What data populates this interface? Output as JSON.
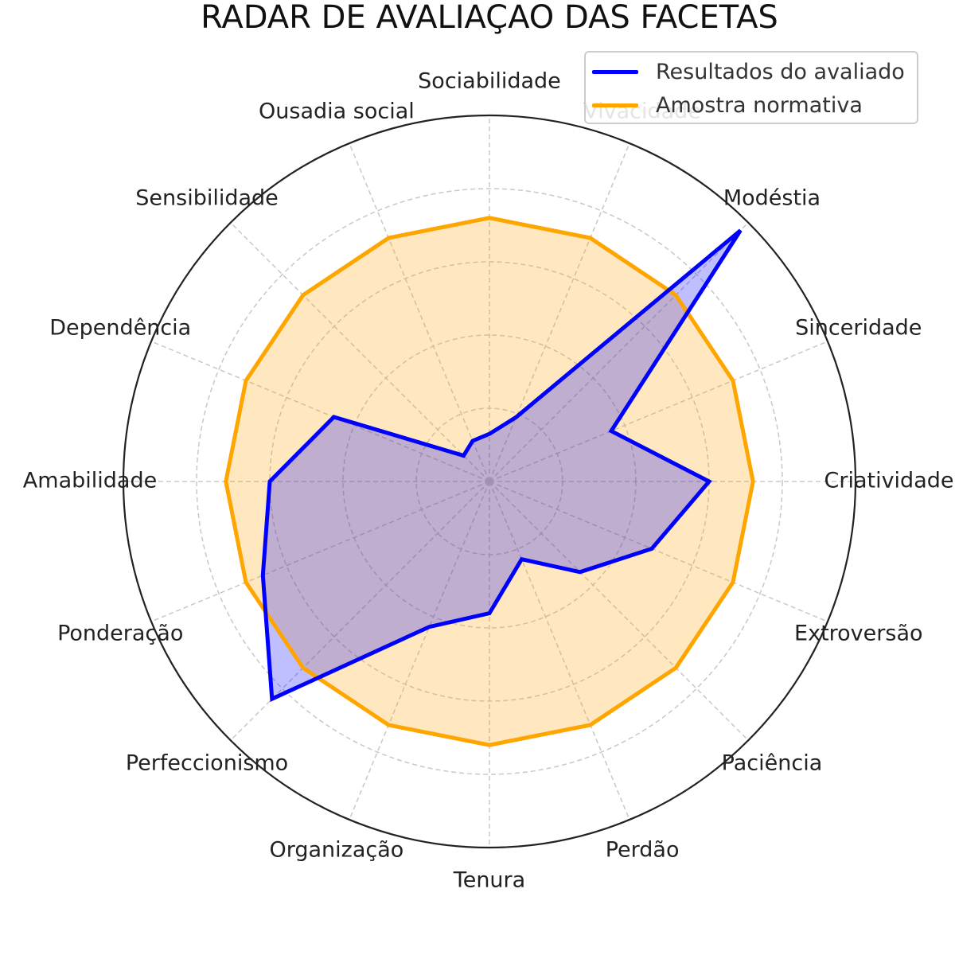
{
  "chart_data": {
    "type": "radar",
    "title": "RADAR DE AVALIAÇAO DAS FACETAS",
    "categories": [
      "Criatividade",
      "Sinceridade",
      "Modéstia",
      "Vivacidade",
      "Sociabilidade",
      "Ousadia social",
      "Sensibilidade",
      "Dependência",
      "Amabilidade",
      "Ponderação",
      "Perfeccionismo",
      "Organização",
      "Tenura",
      "Perdão",
      "Paciência",
      "Extroversão"
    ],
    "rlim": [
      0,
      10
    ],
    "grid_rings": [
      2,
      4,
      6,
      8,
      10
    ],
    "grid": true,
    "legend_position": "top-right",
    "series": [
      {
        "name": "Resultados do avaliado",
        "color": "#0000ff",
        "fill": "rgba(0,0,255,0.25)",
        "values": [
          6.0,
          3.6,
          9.7,
          1.9,
          1.3,
          1.2,
          1.0,
          4.6,
          6.0,
          6.7,
          8.4,
          4.3,
          3.6,
          2.3,
          3.5,
          4.8
        ]
      },
      {
        "name": "Amostra normativa",
        "color": "#ffa500",
        "fill": "rgba(255,165,0,0.25)",
        "values": [
          7.2,
          7.2,
          7.2,
          7.2,
          7.2,
          7.2,
          7.2,
          7.2,
          7.2,
          7.2,
          7.2,
          7.2,
          7.2,
          7.2,
          7.2,
          7.2
        ]
      }
    ]
  }
}
